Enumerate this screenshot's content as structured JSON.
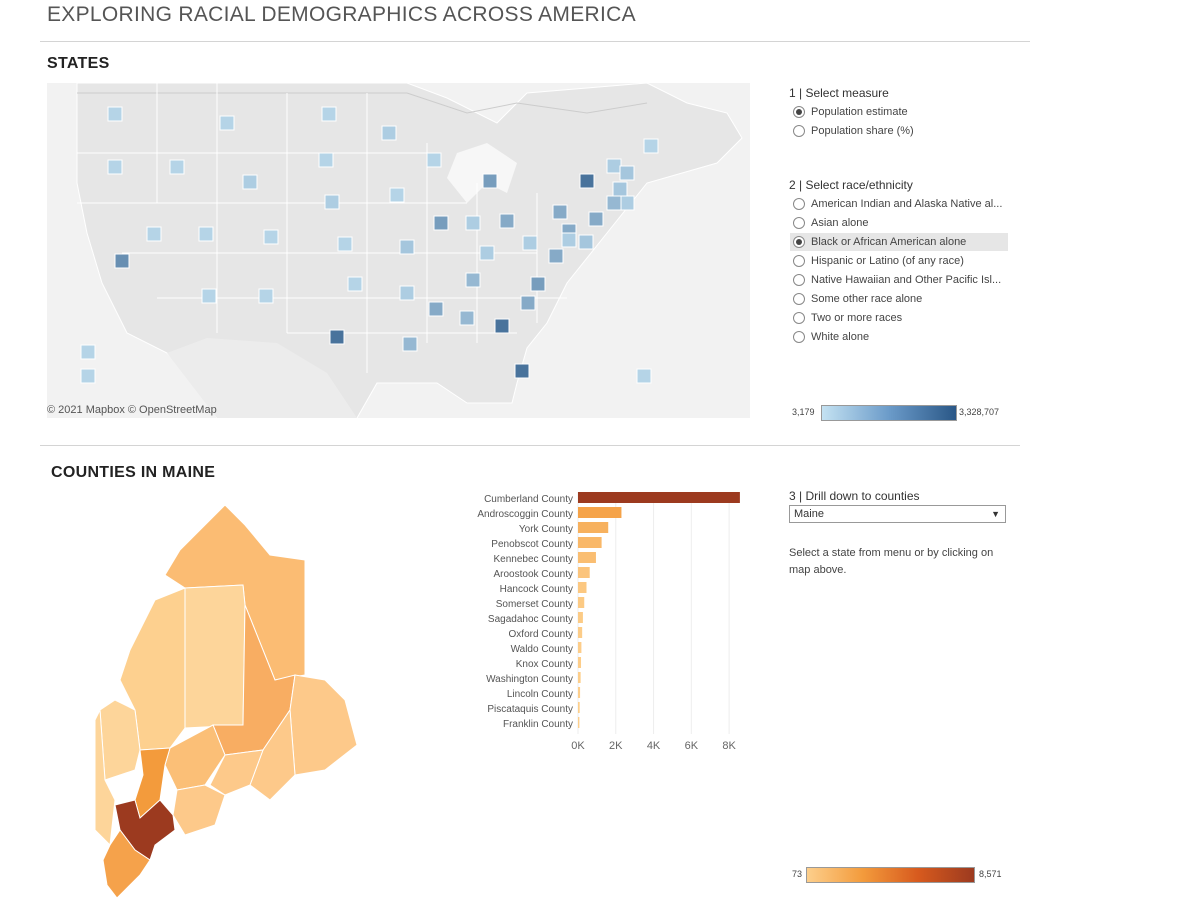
{
  "page": {
    "title": "EXPLORING RACIAL DEMOGRAPHICS ACROSS AMERICA"
  },
  "states_section": {
    "title": "STATES",
    "attribution": "© 2021 Mapbox  © OpenStreetMap",
    "legend": {
      "min": "3,179",
      "max": "3,328,707"
    }
  },
  "controls": {
    "measure_title": "1 | Select measure",
    "measures": [
      {
        "label": "Population estimate",
        "selected": true
      },
      {
        "label": "Population share (%)",
        "selected": false
      }
    ],
    "race_title": "2 | Select race/ethnicity",
    "races": [
      {
        "label": "American Indian and Alaska Native al...",
        "selected": false
      },
      {
        "label": "Asian alone",
        "selected": false
      },
      {
        "label": "Black or African American alone",
        "selected": true
      },
      {
        "label": "Hispanic or Latino (of any race)",
        "selected": false
      },
      {
        "label": "Native Hawaiian and Other Pacific Isl...",
        "selected": false
      },
      {
        "label": "Some other race alone",
        "selected": false
      },
      {
        "label": "Two or more races",
        "selected": false
      },
      {
        "label": "White alone",
        "selected": false
      }
    ],
    "drill_title": "3 | Drill down to counties",
    "drill_value": "Maine",
    "drill_help": "Select a state from menu or by clicking on map above."
  },
  "counties_section": {
    "title": "COUNTIES IN MAINE",
    "legend": {
      "min": "73",
      "max": "8,571"
    }
  },
  "colors": {
    "map_low": "#c4e2f2",
    "map_high": "#2a5787",
    "county_low": "#fdcf8c",
    "county_high": "#9c3a1f",
    "land": "#e8e8e8",
    "background": "#f2f2f2"
  },
  "chart_data": {
    "type": "bar",
    "orientation": "horizontal",
    "categories": [
      "Cumberland County",
      "Androscoggin County",
      "York County",
      "Penobscot County",
      "Kennebec County",
      "Aroostook County",
      "Hancock County",
      "Somerset County",
      "Sagadahoc County",
      "Oxford County",
      "Waldo County",
      "Knox County",
      "Washington County",
      "Lincoln County",
      "Piscataquis County",
      "Franklin County"
    ],
    "values": [
      8571,
      2300,
      1600,
      1250,
      950,
      620,
      450,
      330,
      260,
      220,
      180,
      160,
      140,
      110,
      90,
      73
    ],
    "xticks": [
      "0K",
      "2K",
      "4K",
      "6K",
      "8K"
    ],
    "xlim": [
      0,
      9000
    ],
    "grid": true
  }
}
